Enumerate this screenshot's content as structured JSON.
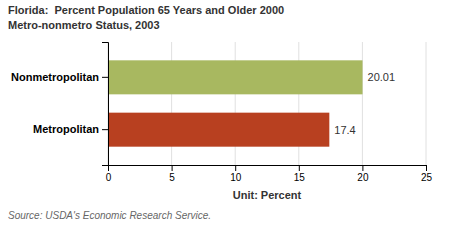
{
  "chart_data": {
    "type": "bar",
    "orientation": "horizontal",
    "title": "Florida:  Percent Population 65 Years and Older 2000",
    "subtitle": "Metro-nonmetro Status, 2003",
    "categories": [
      "Nonmetropolitan",
      "Metropolitan"
    ],
    "values": [
      20.01,
      17.4
    ],
    "colors": [
      "#a8b860",
      "#b84020"
    ],
    "x_label": "Unit: Percent",
    "xlim": [
      0,
      25
    ],
    "xticks": [
      0,
      5,
      10,
      15,
      20,
      25
    ],
    "grid": true,
    "data_labels": true,
    "annotations": [
      "Source: USDA's Economic Research Service."
    ]
  }
}
